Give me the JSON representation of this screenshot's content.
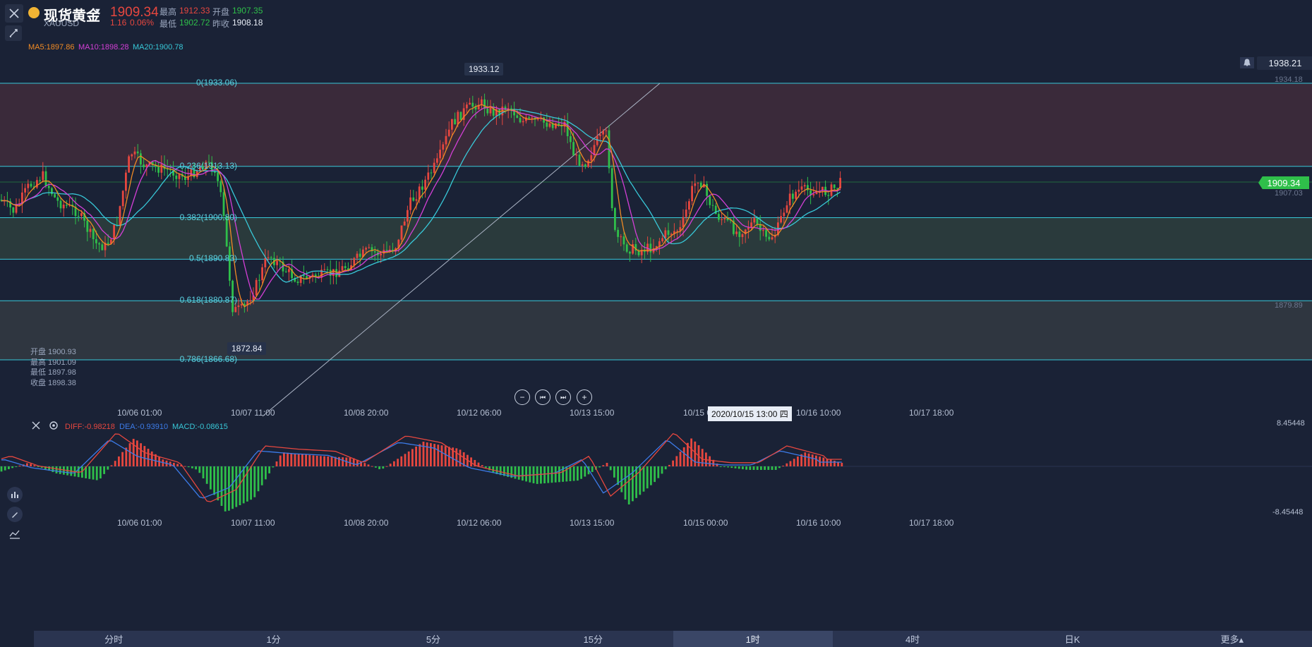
{
  "header": {
    "title": "现货黄金",
    "symbol": "XAUUSD",
    "price": "1909.34",
    "change": "1.16",
    "change_pct": "0.06%",
    "high_label": "最高",
    "high_value": "1912.33",
    "open_label": "开盘",
    "open_value": "1907.35",
    "low_label": "最低",
    "low_value": "1902.72",
    "prev_close_label": "昨收",
    "prev_close_value": "1908.18"
  },
  "ma": {
    "ma5": "MA5:1897.86",
    "ma10": "MA10:1898.28",
    "ma20": "MA20:1900.78",
    "ma5_color": "#f08a24",
    "ma10_color": "#d33fd6",
    "ma20_color": "#38c8d8"
  },
  "price_tags": {
    "alert_price": "1938.21",
    "top_axis": "1934.18",
    "current": "1909.34",
    "axis_mid": "1907.03",
    "axis_low": "1879.89",
    "peak": "1933.12",
    "trough": "1872.84"
  },
  "fib": [
    {
      "label": "0(1933.06)",
      "level": 1933.06
    },
    {
      "label": "0.236(1913.13)",
      "level": 1913.13
    },
    {
      "label": "0.382(1900.80)",
      "level": 1900.8
    },
    {
      "label": "0.5(1890.83)",
      "level": 1890.83
    },
    {
      "label": "0.618(1880.87)",
      "level": 1880.87
    },
    {
      "label": "0.786(1866.68)",
      "level": 1866.68
    }
  ],
  "ohlc_box": {
    "open": "开盘 1900.93",
    "high": "最高 1901.09",
    "low": "最低 1897.98",
    "close": "收盘 1898.38"
  },
  "time_axis": [
    "10/06 01:00",
    "10/07 11:00",
    "10/08 20:00",
    "10/12 06:00",
    "10/13 15:00",
    "10/15 00:00",
    "10/16 10:00",
    "10/17 18:00"
  ],
  "crosshair_time": "2020/10/15 13:00 四",
  "macd": {
    "diff": "DIFF:-0.98218",
    "dea": "DEA:-0.93910",
    "macd": "MACD:-0.08615",
    "axis_top": "8.45448",
    "axis_bottom": "-8.45448",
    "diff_color": "#e6473f",
    "dea_color": "#3c7be8",
    "macd_color": "#38c8d8"
  },
  "colors": {
    "up": "#e6473f",
    "down": "#2fbf4a",
    "bg": "#1a2236"
  },
  "tabs": [
    {
      "label": "分时",
      "active": false
    },
    {
      "label": "1分",
      "active": false
    },
    {
      "label": "5分",
      "active": false
    },
    {
      "label": "15分",
      "active": false
    },
    {
      "label": "1时",
      "active": true
    },
    {
      "label": "4时",
      "active": false
    },
    {
      "label": "日K",
      "active": false
    },
    {
      "label": "更多▴",
      "active": false
    }
  ],
  "icons": {
    "close": "close-icon",
    "draw_tool": "draw-tool-icon",
    "bell": "bell-icon",
    "zoom_out": "zoom-out-icon",
    "prev": "step-back-icon",
    "next": "step-forward-icon",
    "zoom_in": "zoom-in-icon",
    "settings": "gear-icon",
    "pencil": "pencil-icon",
    "indicator": "indicator-icon"
  }
}
